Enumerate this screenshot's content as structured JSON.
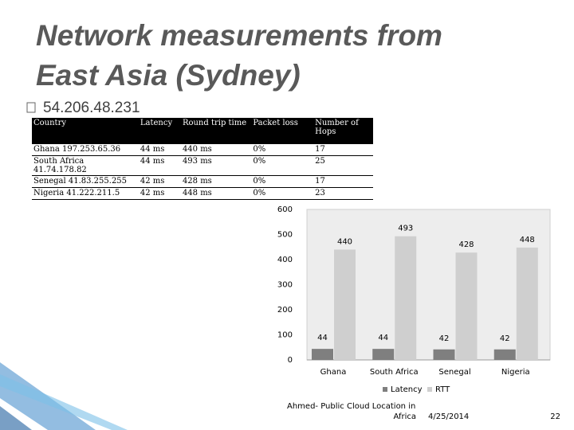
{
  "title": "Network measurements from East Asia (Sydney)",
  "bullet": "54.206.48.231",
  "table": {
    "header": [
      "Country",
      "Latency",
      "Round trip time",
      "Packet loss",
      "Number of Hops"
    ],
    "rows": [
      [
        "Ghana 197.253.65.36",
        "44 ms",
        "440 ms",
        "0%",
        17
      ],
      [
        "South Africa 41.74.178.82",
        "44 ms",
        "493 ms",
        "0%",
        25
      ],
      [
        "Senegal 41.83.255.255",
        "42 ms",
        "428 ms",
        "0%",
        17
      ],
      [
        "Nigeria 41.222.211.5",
        "42 ms",
        "448 ms",
        "0%",
        23
      ]
    ]
  },
  "chart_data": {
    "type": "bar",
    "categories": [
      "Ghana",
      "South Africa",
      "Senegal",
      "Nigeria"
    ],
    "series": [
      {
        "name": "Latency",
        "color": "#7f7f7f",
        "values": [
          44,
          44,
          42,
          42
        ]
      },
      {
        "name": "RTT",
        "color": "#cfcfcf",
        "values": [
          440,
          493,
          428,
          448
        ]
      }
    ],
    "ylim": [
      0,
      600
    ],
    "yticks": [
      0,
      100,
      200,
      300,
      400,
      500,
      600
    ],
    "grid": false,
    "legend": "bottom"
  },
  "footer": {
    "source": [
      "Ahmed- Public Cloud Location in",
      "Africa"
    ],
    "date": "4/25/2014",
    "page": "22"
  }
}
